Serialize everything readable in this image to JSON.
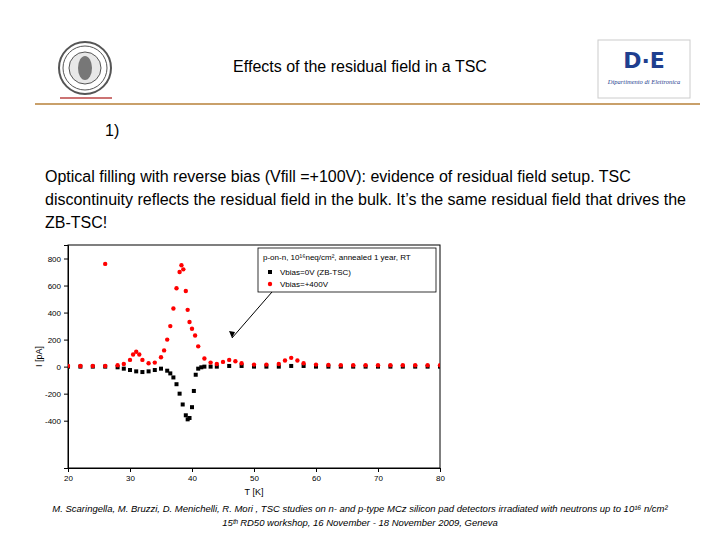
{
  "slide": {
    "title": "Effects of the residual field in a TSC",
    "item": "1)",
    "text": "Optical filling with reverse bias (Vfill =+100V): evidence of residual field setup. TSC discontinuity reflects the residual field in the bulk. It’s the same residual field that drives the ZB-TSC!",
    "logo": "D·E",
    "logo_caption": "Dipartimento di Elettronica",
    "citation": [
      "M. Scaringella, M. Bruzzi, D. Menichelli, R. Mori , TSC studies on n- and p-type MCz silicon pad detectors irradiated with neutrons up to 10¹⁶ n/cm²",
      "15ᵗʰ RD50 workshop, 16 November - 18 November 2009, Geneva"
    ]
  },
  "chart_data": {
    "type": "scatter",
    "x_label": "T [K]",
    "y_label": "I [pA]",
    "annotations": [
      "p-on-n, 10¹⁶neq/cm², annealed 1 year, RT"
    ],
    "xlim": [
      20,
      80
    ],
    "xticks": [
      20,
      30,
      40,
      50,
      60,
      70,
      80
    ],
    "ylim": [
      -750,
      900
    ],
    "yticks": [
      -400,
      -200,
      0,
      200,
      400,
      600,
      800
    ],
    "grid": false,
    "legend": "upper right",
    "series": [
      {
        "name": "Vbias=0V (ZB-TSC)",
        "color": "#000000",
        "marker": "square",
        "x": [
          20,
          22,
          24,
          26,
          28,
          29,
          30,
          31,
          32,
          33,
          34,
          35,
          36,
          36.5,
          37,
          37.5,
          38,
          38.5,
          39,
          39.3,
          39.6,
          40,
          40.3,
          40.6,
          41,
          41.5,
          42,
          43,
          44,
          46,
          48,
          50,
          52,
          54,
          56,
          58,
          60,
          62,
          64,
          66,
          68,
          70,
          72,
          74,
          76,
          78,
          80
        ],
        "values": [
          0,
          0,
          0,
          0,
          -5,
          -15,
          -25,
          -35,
          -40,
          -35,
          -25,
          -15,
          -30,
          -50,
          -80,
          -130,
          -200,
          -280,
          -360,
          -390,
          -380,
          -300,
          -180,
          -60,
          -15,
          -5,
          0,
          0,
          0,
          5,
          5,
          0,
          0,
          0,
          5,
          5,
          0,
          0,
          0,
          0,
          0,
          0,
          0,
          0,
          0,
          0,
          0
        ]
      },
      {
        "name": "Vbias=+400V",
        "color": "#ff0000",
        "marker": "circle",
        "x": [
          20,
          22,
          24,
          26,
          28,
          29,
          30,
          30.5,
          31,
          31.5,
          32,
          33,
          34,
          35,
          35.5,
          36,
          36.5,
          37,
          37.5,
          38,
          38.3,
          38.6,
          39,
          39.3,
          39.6,
          40,
          40.5,
          41,
          42,
          43,
          44,
          45,
          46,
          47,
          48,
          50,
          52,
          54,
          55,
          56,
          57,
          58,
          60,
          62,
          64,
          66,
          68,
          70,
          72,
          74,
          76,
          78,
          80,
          26
        ],
        "values": [
          5,
          5,
          5,
          5,
          10,
          20,
          50,
          90,
          110,
          90,
          50,
          25,
          30,
          70,
          120,
          200,
          300,
          430,
          580,
          700,
          750,
          720,
          560,
          420,
          330,
          280,
          230,
          150,
          60,
          30,
          20,
          35,
          50,
          40,
          25,
          15,
          15,
          20,
          45,
          65,
          45,
          25,
          15,
          12,
          10,
          10,
          10,
          10,
          10,
          10,
          10,
          10,
          10,
          760
        ]
      }
    ]
  }
}
